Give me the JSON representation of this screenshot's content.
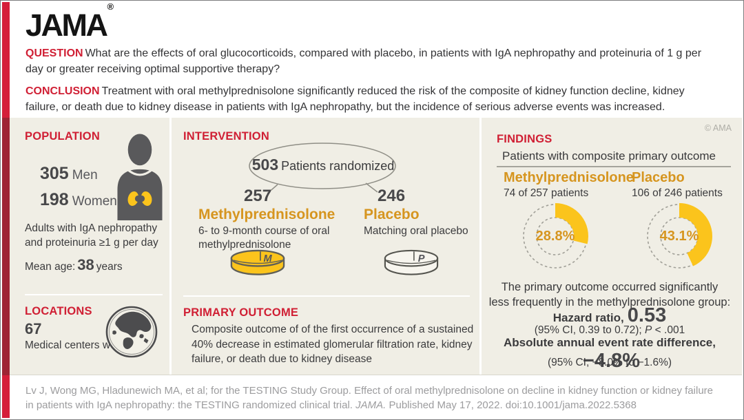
{
  "meta": {
    "brand": "JAMA",
    "registered": "®",
    "copyright": "© AMA"
  },
  "colors": {
    "heading_red": "#d01f34",
    "accent_bar_red": "#d51f3a",
    "accent_bar_dark_red": "#9e2434",
    "amber": "#d6951f",
    "yellow": "#fbc41c",
    "panel_beige": "#f0eee5",
    "text_dark": "#3b3b3d",
    "icon_gray": "#59595b",
    "footer_gray": "#9c9c9e"
  },
  "question": {
    "label": "QUESTION",
    "text": "What are the effects of oral glucocorticoids, compared with placebo, in patients with IgA nephropathy and proteinuria of 1 g per day or greater receiving optimal supportive therapy?"
  },
  "conclusion": {
    "label": "CONCLUSION",
    "text": "Treatment with oral methylprednisolone significantly reduced the risk of the composite of kidney function decline, kidney failure, or death due to kidney disease in patients with IgA nephropathy, but the incidence of serious adverse events was increased."
  },
  "population": {
    "heading": "POPULATION",
    "men_value": "305",
    "men_label": "Men",
    "women_value": "198",
    "women_label": "Women",
    "description": "Adults with IgA nephropathy and proteinuria ≥1 g per day",
    "mean_age_label": "Mean age:",
    "mean_age_value": "38",
    "mean_age_unit": "years"
  },
  "locations": {
    "heading": "LOCATIONS",
    "value": "67",
    "description": "Medical centers worldwide"
  },
  "intervention": {
    "heading": "INTERVENTION",
    "randomized_value": "503",
    "randomized_label": "Patients randomized",
    "groups": [
      {
        "n": "257",
        "name": "Methylprednisolone",
        "description": "6- to 9-month course of oral methylprednisolone",
        "pill_letter": "M"
      },
      {
        "n": "246",
        "name": "Placebo",
        "description": "Matching oral placebo",
        "pill_letter": "P"
      }
    ]
  },
  "primary_outcome": {
    "heading": "PRIMARY OUTCOME",
    "text": "Composite outcome of of the first occurrence of a sustained 40% decrease in estimated glomerular filtration rate, kidney failure, or death due to kidney disease"
  },
  "findings": {
    "heading": "FINDINGS",
    "subtitle": "Patients with composite primary outcome",
    "groups": [
      {
        "name": "Methylprednisolone",
        "detail": "74 of 257 patients",
        "percent": 28.8,
        "percent_label": "28.8%"
      },
      {
        "name": "Placebo",
        "detail": "106 of 246 patients",
        "percent": 43.1,
        "percent_label": "43.1%"
      }
    ],
    "chart_data": {
      "type": "pie",
      "title": "Patients with composite primary outcome",
      "series": [
        {
          "name": "Methylprednisolone",
          "label": "74 of 257 patients",
          "value_pct": 28.8
        },
        {
          "name": "Placebo",
          "label": "106 of 246 patients",
          "value_pct": 43.1
        }
      ]
    },
    "summary_lines": [
      "The primary outcome occurred significantly",
      "less frequently in the methylprednisolone group:"
    ],
    "hazard_label": "Hazard ratio,",
    "hazard_value": "0.53",
    "hazard_ci_pre": "(95% CI, 0.39 to 0.72); ",
    "hazard_ci_p": "P",
    "hazard_ci_post": " < .001",
    "rate_label": "Absolute annual event rate difference,",
    "rate_value": "−4.8%",
    "rate_ci": "(95% CI, −8.0% to −1.6%)"
  },
  "footer": {
    "citation_pre": "Lv J, Wong MG, Hladunewich MA, et al; for the TESTING Study Group. Effect of oral methylprednisolone on decline in kidney function or kidney failure in patients with IgA nephropathy: the TESTING randomized clinical trial. ",
    "citation_journal": "JAMA.",
    "citation_post": " Published May 17, 2022. doi:10.1001/jama.2022.5368"
  }
}
